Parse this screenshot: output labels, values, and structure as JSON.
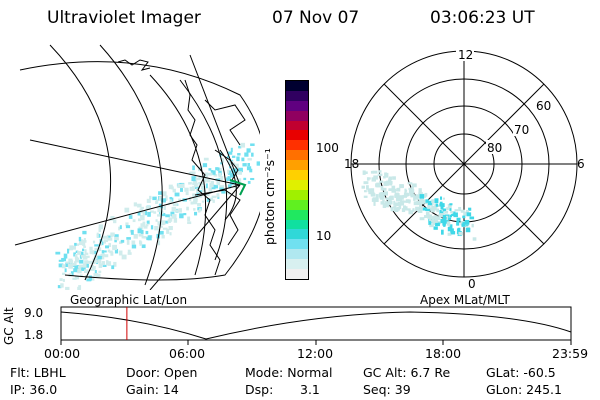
{
  "header": {
    "instrument": "Ultraviolet Imager",
    "date": "07 Nov 07",
    "time": "03:06:23 UT"
  },
  "colorbar": {
    "unit_label": "photon cm⁻²s⁻¹",
    "ticks": [
      "100",
      "10"
    ],
    "colors": [
      "#f0f0f0",
      "#d8f0f0",
      "#b0e8f0",
      "#70e0f0",
      "#30d8d8",
      "#10e0a0",
      "#20e860",
      "#60f020",
      "#a0f000",
      "#e0f000",
      "#ffd000",
      "#ffa000",
      "#ff7000",
      "#ff3000",
      "#e80000",
      "#c00030",
      "#900060",
      "#600080",
      "#300060",
      "#000030"
    ]
  },
  "polar_plot": {
    "lat_labels": [
      "60",
      "70",
      "80"
    ],
    "mlt_labels": {
      "top": "12",
      "right": "6",
      "bottom": "0",
      "left": "18"
    }
  },
  "panel_labels": {
    "left": "Geographic Lat/Lon",
    "right": "Apex MLat/MLT"
  },
  "altitude_plot": {
    "ylabel": "GC Alt",
    "yticks": [
      "9.0",
      "1.8"
    ],
    "xticks": [
      "00:00",
      "06:00",
      "12:00",
      "18:00",
      "23:59"
    ],
    "current_time_hours": 3.1
  },
  "info": {
    "flt": "Flt: LBHL",
    "door": "Door: Open",
    "mode": "Mode: Normal",
    "gcalt": "GC Alt: 6.7 Re",
    "glat": "GLat: -60.5",
    "ip": "IP: 36.0",
    "gain": "Gain: 14",
    "dsp_label": "Dsp:",
    "dsp_value": "3.1",
    "seq": "Seq: 39",
    "glon": "GLon: 245.1"
  }
}
